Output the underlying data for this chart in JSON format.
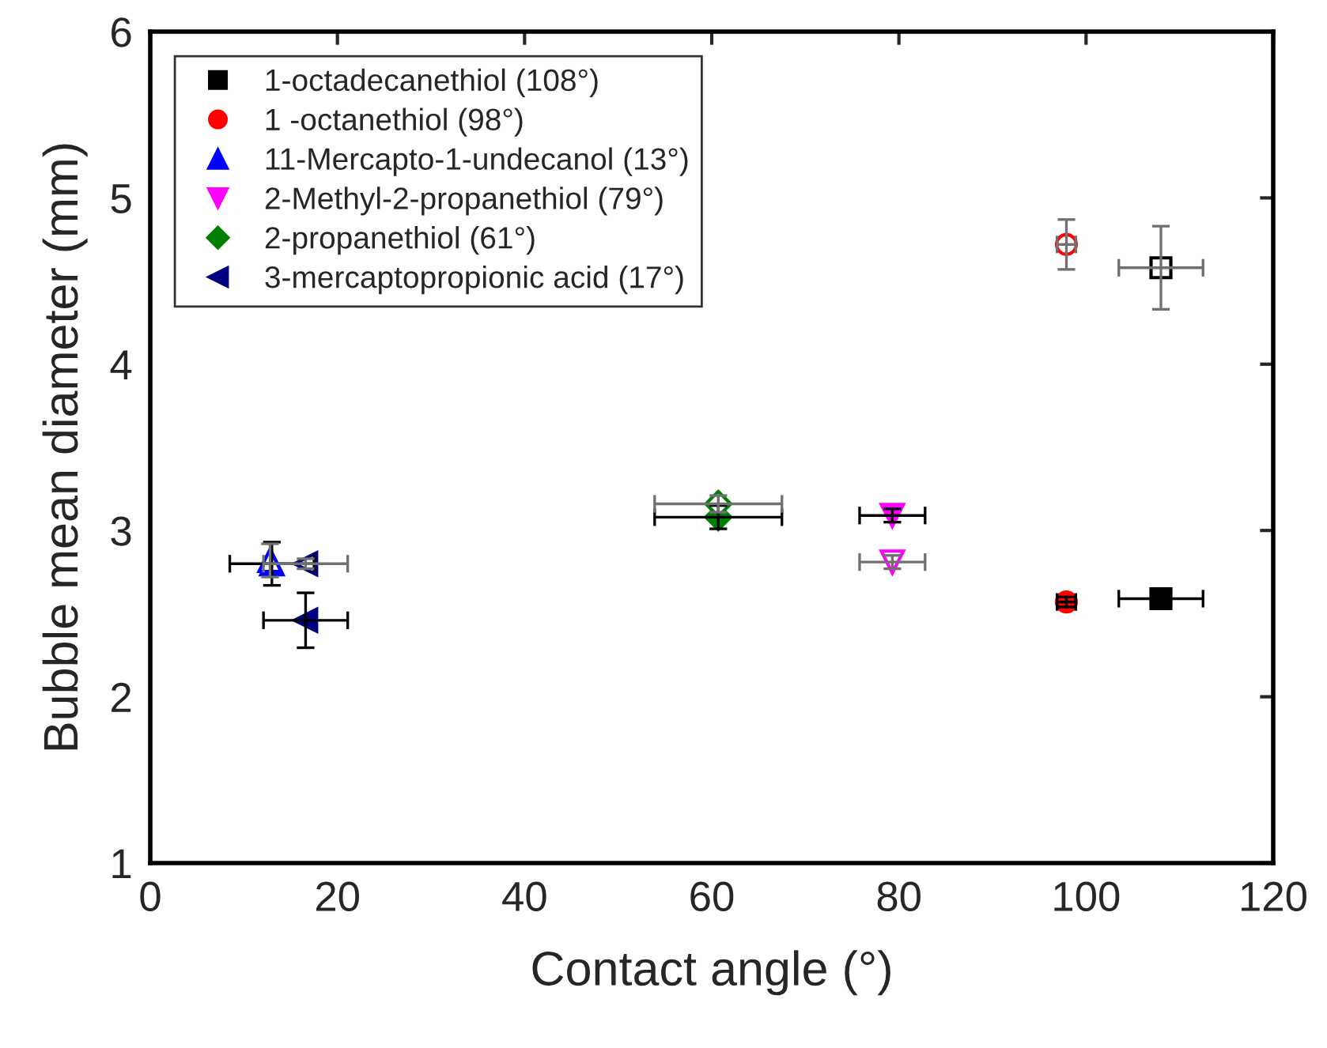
{
  "chart_data": {
    "type": "scatter",
    "xlabel": "Contact angle (°)",
    "ylabel": "Bubble mean diameter (mm)",
    "xlim": [
      0,
      120
    ],
    "xticks": [
      0,
      20,
      40,
      60,
      80,
      100,
      120
    ],
    "ylim": [
      1,
      6
    ],
    "yticks": [
      1,
      2,
      3,
      4,
      5,
      6
    ],
    "grid": false,
    "legend": "top left",
    "series": [
      {
        "name": "1-octadecanethiol (108°)",
        "color": "#000000",
        "marker": "square",
        "x": [
          108
        ],
        "values": [
          2.59
        ],
        "errors": [
          0.04
        ],
        "xerrors": [
          4.5
        ]
      },
      {
        "name": "1 -octanethiol (98°)",
        "color": "#ff0000",
        "marker": "circle",
        "x": [
          97.9
        ],
        "values": [
          2.57
        ],
        "errors": [
          0.03
        ],
        "xerrors": [
          1
        ]
      },
      {
        "name": "11-Mercapto-1-undecanol (13°)",
        "color": "#0000ff",
        "marker": "triangle",
        "x": [
          13
        ],
        "values": [
          2.8
        ],
        "errors": [
          0.13
        ],
        "xerrors": [
          4.5
        ]
      },
      {
        "name": "2-Methyl-2-propanethiol (79°)",
        "color": "#ff00ff",
        "marker": "triangle_down",
        "x": [
          79.3
        ],
        "values": [
          3.09
        ],
        "errors": [
          0.04
        ],
        "xerrors": [
          3.5
        ]
      },
      {
        "name": "2-propanethiol (61°)",
        "color": "#008000",
        "marker": "diamond",
        "x": [
          60.7
        ],
        "values": [
          3.08
        ],
        "errors": [
          0.07
        ],
        "xerrors": [
          6.8
        ]
      },
      {
        "name": "3-mercaptopropionic acid (17°)",
        "color": "#000080",
        "marker": "triangle_left",
        "x": [
          16.6
        ],
        "values": [
          2.46
        ],
        "errors": [
          0.165
        ],
        "xerrors": [
          4.5
        ]
      },
      {
        "color": "#000000",
        "marker": "square",
        "x": [
          108
        ],
        "values": [
          4.58
        ],
        "errors": [
          0.25
        ],
        "xerrors": [
          4.5
        ]
      },
      {
        "color": "#ff0000",
        "marker": "circle",
        "x": [
          97.9
        ],
        "values": [
          4.72
        ],
        "errors": [
          0.15
        ],
        "xerrors": [
          1
        ]
      },
      {
        "color": "#0000ff",
        "marker": "triangle",
        "x": [
          12.8
        ],
        "values": [
          2.82
        ],
        "errors": [
          0.1
        ],
        "xerrors": [
          null
        ]
      },
      {
        "color": "#ff00ff",
        "marker": "triangle_down",
        "x": [
          79.3
        ],
        "values": [
          2.81
        ],
        "errors": [
          0.04
        ],
        "xerrors": [
          3.5
        ]
      },
      {
        "color": "#008000",
        "marker": "diamond",
        "x": [
          60.7
        ],
        "values": [
          3.16
        ],
        "errors": [
          0.05
        ],
        "xerrors": [
          6.8
        ]
      },
      {
        "color": "#000080",
        "marker": "triangle_left",
        "x": [
          16.6
        ],
        "values": [
          2.8
        ],
        "errors": [
          0.03
        ],
        "xerrors": [
          4.5
        ]
      }
    ]
  }
}
